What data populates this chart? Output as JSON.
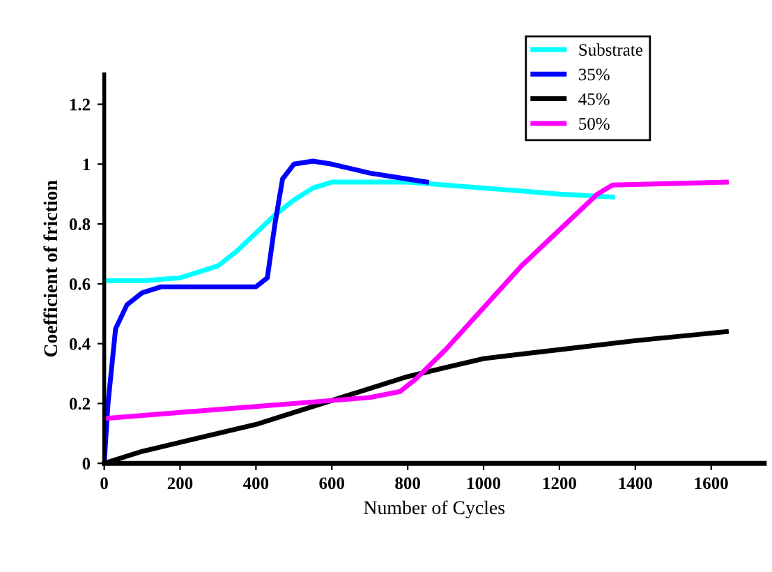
{
  "chart_data": {
    "type": "line",
    "xlabel": "Number of Cycles",
    "ylabel": "Coefficient of friction",
    "xlim": [
      0,
      1740
    ],
    "xticks": [
      0,
      200,
      400,
      600,
      800,
      1000,
      1200,
      1400,
      1600
    ],
    "ylim": [
      0,
      1.3
    ],
    "yticks": [
      0,
      0.2,
      0.4,
      0.6,
      0.8,
      1,
      1.2
    ],
    "grid": false,
    "legend": "top right",
    "marker": "none",
    "line_style": "solid",
    "series": [
      {
        "name": "Substrate",
        "color": "#00ffff",
        "x": [
          0,
          100,
          200,
          300,
          350,
          400,
          450,
          500,
          550,
          600,
          800,
          1000,
          1200,
          1340
        ],
        "values": [
          0.61,
          0.61,
          0.62,
          0.66,
          0.71,
          0.77,
          0.83,
          0.88,
          0.92,
          0.94,
          0.94,
          0.92,
          0.9,
          0.89
        ]
      },
      {
        "name": "35%",
        "color": "#0000ff",
        "x": [
          0,
          10,
          30,
          60,
          100,
          150,
          300,
          400,
          430,
          450,
          470,
          500,
          550,
          600,
          700,
          800,
          850
        ],
        "values": [
          0.0,
          0.2,
          0.45,
          0.53,
          0.57,
          0.59,
          0.59,
          0.59,
          0.62,
          0.8,
          0.95,
          1.0,
          1.01,
          1.0,
          0.97,
          0.95,
          0.94
        ]
      },
      {
        "name": "45%",
        "color": "#000000",
        "x": [
          0,
          100,
          200,
          400,
          600,
          800,
          900,
          1000,
          1200,
          1400,
          1640
        ],
        "values": [
          0.0,
          0.04,
          0.07,
          0.13,
          0.21,
          0.29,
          0.32,
          0.35,
          0.38,
          0.41,
          0.44
        ]
      },
      {
        "name": "50%",
        "color": "#ff00ff",
        "x": [
          0,
          200,
          400,
          600,
          700,
          780,
          820,
          900,
          1000,
          1100,
          1200,
          1300,
          1340,
          1640
        ],
        "values": [
          0.15,
          0.17,
          0.19,
          0.21,
          0.22,
          0.24,
          0.28,
          0.38,
          0.52,
          0.66,
          0.78,
          0.9,
          0.93,
          0.94
        ]
      }
    ]
  }
}
